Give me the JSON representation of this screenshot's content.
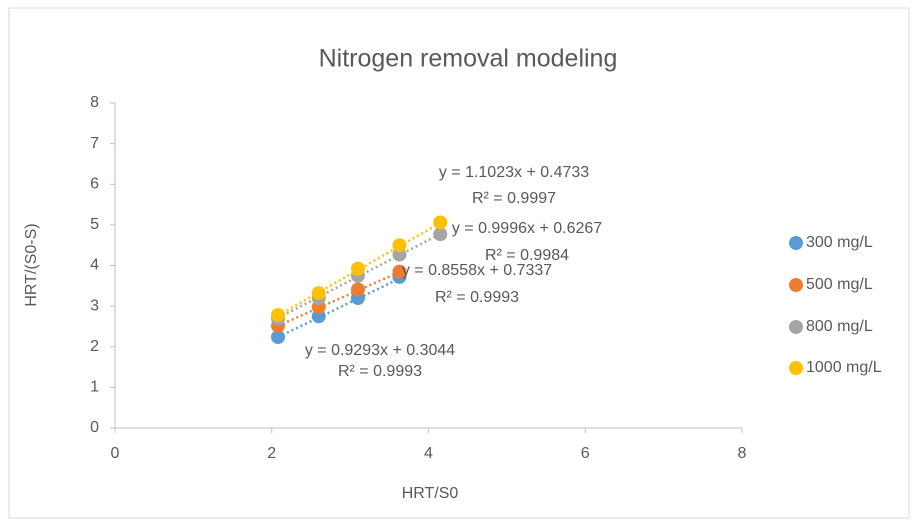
{
  "chart_data": {
    "type": "scatter",
    "title": "Nitrogen removal modeling",
    "x_label": "HRT/S0",
    "y_label": "HRT/(S0-S)",
    "xlim": [
      0,
      8
    ],
    "xticks": [
      0,
      2,
      4,
      6,
      8
    ],
    "ylim": [
      0,
      8
    ],
    "yticks": [
      0,
      1,
      2,
      3,
      4,
      5,
      6,
      7,
      8
    ],
    "grid": false,
    "legend": "right",
    "series": [
      {
        "name": "300 mg/L",
        "color": "#5b9bd5",
        "x": [
          2.08,
          2.6,
          3.1,
          3.63
        ],
        "values": [
          2.24,
          2.75,
          3.2,
          3.72
        ],
        "trendline": {
          "slope": 0.9293,
          "intercept": 0.3044,
          "label": "y = 0.9293x + 0.3044",
          "r2_label": "R² = 0.9993"
        }
      },
      {
        "name": "500 mg/L",
        "color": "#ed7d31",
        "x": [
          2.08,
          2.6,
          3.1,
          3.63
        ],
        "values": [
          2.52,
          2.98,
          3.41,
          3.85
        ],
        "trendline": {
          "slope": 0.8558,
          "intercept": 0.7337,
          "label": "y = 0.8558x + 0.7337",
          "r2_label": "R² = 0.9993"
        }
      },
      {
        "name": "800 mg/L",
        "color": "#a5a5a5",
        "x": [
          2.08,
          2.6,
          3.1,
          3.63,
          4.15
        ],
        "values": [
          2.7,
          3.2,
          3.75,
          4.27,
          4.77
        ],
        "trendline": {
          "slope": 0.9996,
          "intercept": 0.6267,
          "label": "y = 0.9996x + 0.6267",
          "r2_label": "R² = 0.9984"
        }
      },
      {
        "name": "1000 mg/L",
        "color": "#ffc000",
        "x": [
          2.08,
          2.6,
          3.1,
          3.63,
          4.15
        ],
        "values": [
          2.78,
          3.32,
          3.92,
          4.5,
          5.06
        ],
        "trendline": {
          "slope": 1.1023,
          "intercept": 0.4733,
          "label": "y = 1.1023x + 0.4733",
          "r2_label": "R² = 0.9997"
        }
      }
    ]
  }
}
